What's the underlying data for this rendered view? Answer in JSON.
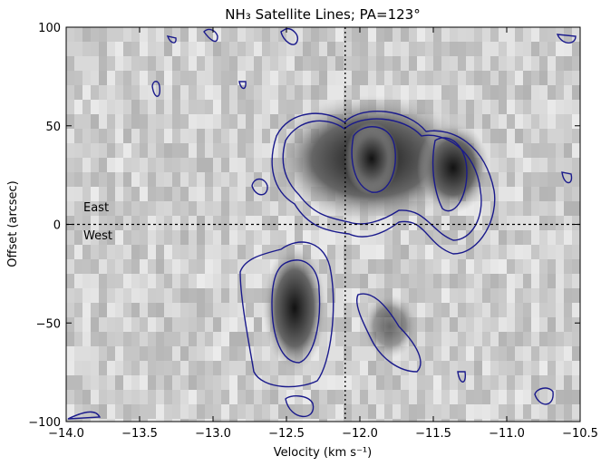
{
  "chart_data": {
    "type": "image",
    "title": "NH₃ Satellite Lines; PA=123°",
    "x_label": "Velocity (km s⁻¹)",
    "y_label": "Offset (arcsec)",
    "annotations": [
      "East",
      "West"
    ],
    "xlim": [
      -14,
      -10.5
    ],
    "ylim": [
      -100,
      100
    ],
    "xticks": [
      {
        "value": -14,
        "label": "−14.0"
      },
      {
        "value": -13.5,
        "label": "−13.5"
      },
      {
        "value": -13,
        "label": "−13.0"
      },
      {
        "value": -12.5,
        "label": "−12.5"
      },
      {
        "value": -12,
        "label": "−12.0"
      },
      {
        "value": -11.5,
        "label": "−11.5"
      },
      {
        "value": -11,
        "label": "−11.0"
      },
      {
        "value": -10.5,
        "label": "−10.5"
      }
    ],
    "yticks": [
      {
        "value": -100,
        "label": "−100"
      },
      {
        "value": -50,
        "label": "−50"
      },
      0,
      50,
      100
    ],
    "vline": -12.1,
    "hline": 0,
    "contour_color": "#1a1a8c"
  }
}
